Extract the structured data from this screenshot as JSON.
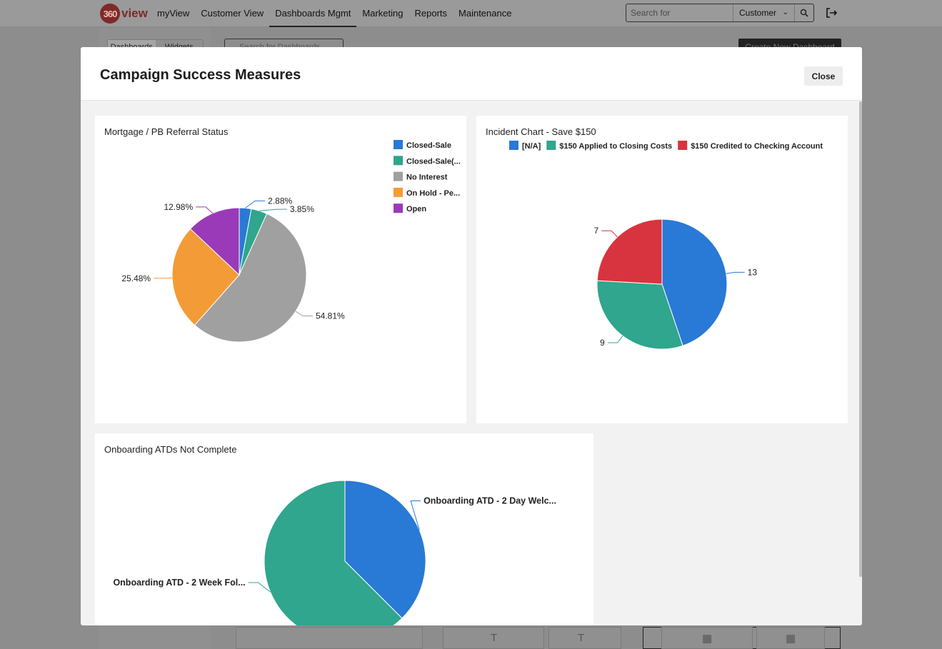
{
  "app": {
    "logo_number": "360",
    "logo_word": "view",
    "nav": [
      "myView",
      "Customer View",
      "Dashboards Mgmt",
      "Marketing",
      "Reports",
      "Maintenance"
    ],
    "active_nav": 2,
    "search": {
      "placeholder": "Search for",
      "scope": "Customer"
    },
    "tabs": [
      "Dashboards",
      "Widgets"
    ],
    "dashboard_search_placeholder": "Search for Dashboards",
    "create_button": "Create New Dashboard"
  },
  "modal": {
    "title": "Campaign Success Measures",
    "close_label": "Close"
  },
  "chart_data": [
    {
      "type": "pie",
      "title": "Mortgage / PB Referral Status",
      "categories": [
        "Closed-Sale",
        "Closed-Sale(...",
        "No Interest",
        "On Hold - Pe...",
        "Open"
      ],
      "values": [
        2.88,
        3.85,
        54.81,
        25.48,
        12.98
      ],
      "data_labels": [
        "2.88%",
        "3.85%",
        "54.81%",
        "25.48%",
        "12.98%"
      ],
      "colors": [
        "#2979d6",
        "#2fa68d",
        "#a0a0a0",
        "#f39c37",
        "#9a3ab8"
      ],
      "legend_position": "right"
    },
    {
      "type": "pie",
      "title": "Incident Chart - Save $150",
      "categories": [
        "[N/A]",
        "$150 Applied to Closing Costs",
        "$150 Credited to Checking Account"
      ],
      "values": [
        13,
        9,
        7
      ],
      "data_labels": [
        "13",
        "9",
        "7"
      ],
      "colors": [
        "#2979d6",
        "#2fa68d",
        "#d8343f"
      ],
      "legend_position": "top"
    },
    {
      "type": "pie",
      "title": "Onboarding ATDs Not Complete",
      "categories": [
        "Onboarding ATD - 2 Day Welc...",
        "Onboarding ATD - 2 Week Fol..."
      ],
      "values": [
        37.5,
        62.5
      ],
      "data_labels": [
        "Onboarding ATD - 2 Day Welc...",
        "Onboarding ATD - 2 Week Fol..."
      ],
      "colors": [
        "#2979d6",
        "#2fa68d"
      ],
      "legend_position": "none"
    }
  ]
}
